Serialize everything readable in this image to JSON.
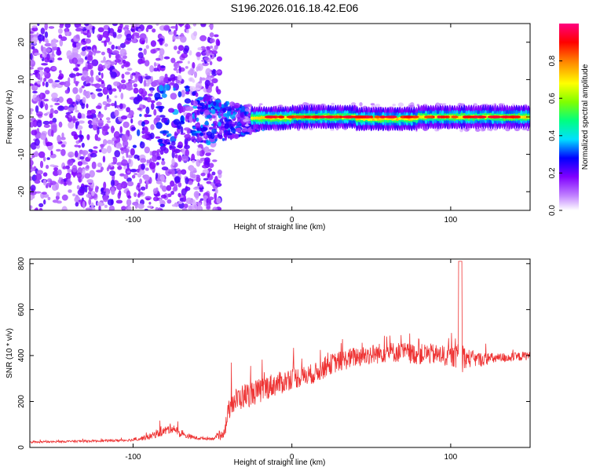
{
  "figure": {
    "title": "S196.2026.016.18.42.E06"
  },
  "chart_data": [
    {
      "type": "heatmap",
      "name": "spectrogram",
      "xlabel": "Height of straight line (km)",
      "ylabel": "Frequency (Hz)",
      "xlim": [
        -165,
        150
      ],
      "ylim": [
        -25,
        25
      ],
      "x_ticks": [
        -100,
        0,
        100
      ],
      "x_tick_labels": [
        "-100",
        "0",
        "100"
      ],
      "y_ticks": [
        -20,
        -10,
        0,
        10,
        20
      ],
      "y_tick_labels": [
        "-20",
        "-10",
        "0",
        "10",
        "20"
      ],
      "colorbar": {
        "label": "Normalized spectral amplitude",
        "range": [
          0,
          1
        ],
        "ticks": [
          0.0,
          0.2,
          0.4,
          0.6,
          0.8
        ],
        "tick_labels": [
          "0.0",
          "0.2",
          "0.4",
          "0.6",
          "0.8"
        ],
        "colors": [
          "#ffffff",
          "#c080ff",
          "#8000ff",
          "#0000ff",
          "#00e0ff",
          "#00ff80",
          "#80ff00",
          "#ffff00",
          "#ff8000",
          "#ff0000",
          "#ff0080"
        ]
      },
      "description_regions": [
        {
          "x_range": [
            -165,
            -60
          ],
          "character": "broadband noise, scattered"
        },
        {
          "x_range": [
            -60,
            -20
          ],
          "character": "transition, signal emerges near 0 Hz"
        },
        {
          "x_range": [
            -20,
            150
          ],
          "character": "narrow band centered near 0 Hz, high amplitude"
        }
      ]
    },
    {
      "type": "line",
      "name": "snr",
      "xlabel": "Height of straight line (km)",
      "ylabel": "SNR (10 * v/v)",
      "xlim": [
        -165,
        150
      ],
      "ylim": [
        0,
        820
      ],
      "x_ticks": [
        -100,
        0,
        100
      ],
      "x_tick_labels": [
        "-100",
        "0",
        "100"
      ],
      "y_ticks": [
        0,
        200,
        400,
        600,
        800
      ],
      "y_tick_labels": [
        "0",
        "200",
        "400",
        "600",
        "800"
      ],
      "color": "#ee3333",
      "series": [
        {
          "name": "SNR",
          "x": [
            -165,
            -150,
            -140,
            -120,
            -100,
            -90,
            -80,
            -75,
            -70,
            -60,
            -50,
            -45,
            -42,
            -40,
            -38,
            -35,
            -30,
            -25,
            -20,
            -15,
            -10,
            -5,
            0,
            5,
            10,
            15,
            20,
            25,
            30,
            35,
            40,
            45,
            50,
            55,
            60,
            65,
            70,
            75,
            80,
            85,
            90,
            95,
            100,
            104,
            106,
            108,
            110,
            115,
            120,
            125,
            130,
            135,
            140,
            145,
            150
          ],
          "y": [
            22,
            24,
            26,
            28,
            32,
            45,
            70,
            85,
            55,
            40,
            38,
            45,
            80,
            150,
            190,
            200,
            220,
            230,
            240,
            260,
            270,
            280,
            300,
            300,
            310,
            320,
            340,
            360,
            370,
            380,
            390,
            395,
            400,
            405,
            410,
            410,
            410,
            405,
            400,
            405,
            400,
            395,
            390,
            390,
            420,
            390,
            385,
            380,
            380,
            385,
            385,
            390,
            390,
            395,
            400
          ],
          "amplitude": [
            8,
            8,
            9,
            10,
            12,
            25,
            40,
            45,
            30,
            15,
            12,
            30,
            70,
            90,
            110,
            110,
            110,
            110,
            110,
            110,
            100,
            100,
            100,
            90,
            90,
            90,
            90,
            90,
            90,
            90,
            90,
            90,
            90,
            90,
            90,
            90,
            90,
            90,
            90,
            90,
            90,
            90,
            90,
            100,
            380,
            100,
            90,
            70,
            60,
            50,
            45,
            45,
            40,
            40,
            40
          ]
        }
      ]
    }
  ]
}
